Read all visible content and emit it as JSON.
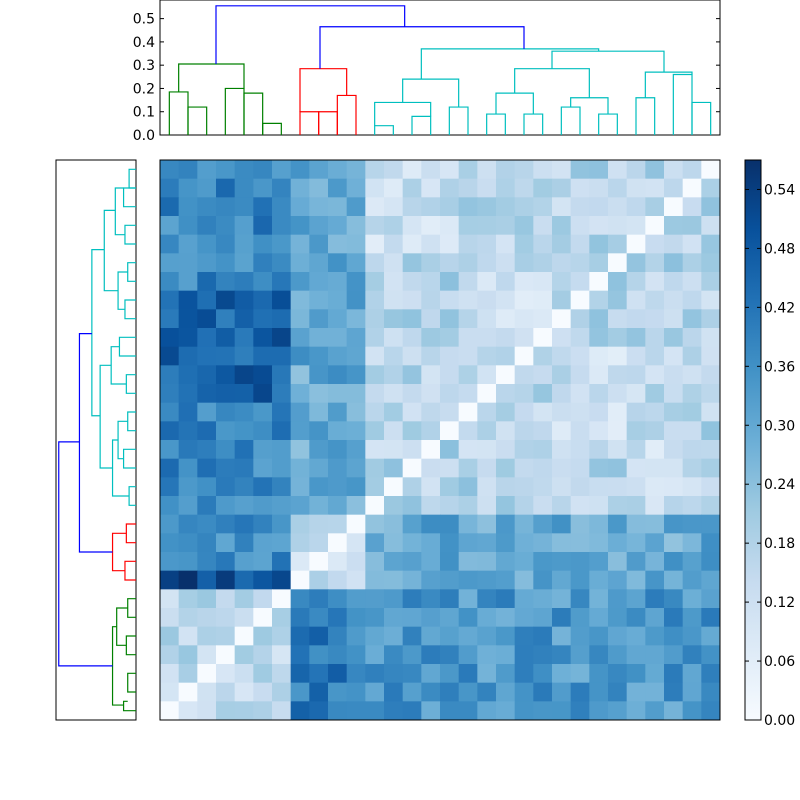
{
  "chart_data": [
    {
      "type": "dendrogram",
      "orientation": "top",
      "ylim": [
        0,
        0.58
      ],
      "yticks": [
        "0.0",
        "0.1",
        "0.2",
        "0.3",
        "0.4",
        "0.5"
      ],
      "ytick_values": [
        0,
        0.1,
        0.2,
        0.3,
        0.4,
        0.5
      ],
      "n_leaves": 30,
      "colors": {
        "green": "#008000",
        "red": "#ff0000",
        "cyan": "#00bfbf",
        "root": "#0000ff"
      },
      "links": [
        {
          "leaves": [
            0,
            1
          ],
          "h": 0.185,
          "c": "green"
        },
        {
          "leaves": [
            1,
            2
          ],
          "h": 0.12,
          "c": "green"
        },
        {
          "leaves": [
            3,
            4
          ],
          "h": 0.2,
          "c": "green"
        },
        {
          "leaves": [
            4,
            5
          ],
          "h": 0.18,
          "c": "green"
        },
        {
          "leaves": [
            5,
            6
          ],
          "h": 0.05,
          "c": "green"
        },
        {
          "leaves": [
            7,
            8
          ],
          "h": 0.1,
          "c": "red"
        },
        {
          "leaves": [
            8,
            9
          ],
          "h": 0.1,
          "c": "red"
        },
        {
          "leaves": [
            9,
            10
          ],
          "h": 0.17,
          "c": "red"
        },
        {
          "leaves": [
            11,
            12
          ],
          "h": 0.04,
          "c": "cyan"
        },
        {
          "leaves": [
            13,
            14
          ],
          "h": 0.08,
          "c": "cyan"
        },
        {
          "leaves": [
            15,
            16
          ],
          "h": 0.12,
          "c": "cyan"
        },
        {
          "leaves": [
            17,
            18
          ],
          "h": 0.09,
          "c": "cyan"
        },
        {
          "leaves": [
            19,
            20
          ],
          "h": 0.09,
          "c": "cyan"
        },
        {
          "leaves": [
            21,
            22
          ],
          "h": 0.12,
          "c": "cyan"
        },
        {
          "leaves": [
            23,
            24
          ],
          "h": 0.09,
          "c": "cyan"
        },
        {
          "leaves": [
            25,
            26
          ],
          "h": 0.16,
          "c": "cyan"
        },
        {
          "leaves": [
            27,
            28
          ],
          "h": 0.26,
          "c": "cyan"
        },
        {
          "leaves": [
            28,
            29
          ],
          "h": 0.14,
          "c": "cyan"
        }
      ]
    },
    {
      "type": "heatmap",
      "rows": 30,
      "cols": 30,
      "cmap": "Blues",
      "vmin": 0.0,
      "vmax": 0.57,
      "colorbar_ticks": [
        "0.00",
        "0.06",
        "0.12",
        "0.18",
        "0.24",
        "0.30",
        "0.36",
        "0.42",
        "0.48",
        "0.54"
      ],
      "colorbar_values": [
        0,
        0.06,
        0.12,
        0.18,
        0.24,
        0.3,
        0.36,
        0.42,
        0.48,
        0.54
      ],
      "groups_top": [
        {
          "label": "green",
          "cols": [
            0,
            6
          ]
        },
        {
          "label": "red",
          "cols": [
            7,
            10
          ]
        },
        {
          "label": "cyan",
          "cols": [
            11,
            29
          ]
        }
      ],
      "groups_left": [
        {
          "label": "cyan",
          "rows": [
            0,
            18
          ]
        },
        {
          "label": "red",
          "rows": [
            19,
            22
          ]
        },
        {
          "label": "green",
          "rows": [
            23,
            29
          ]
        }
      ]
    }
  ]
}
